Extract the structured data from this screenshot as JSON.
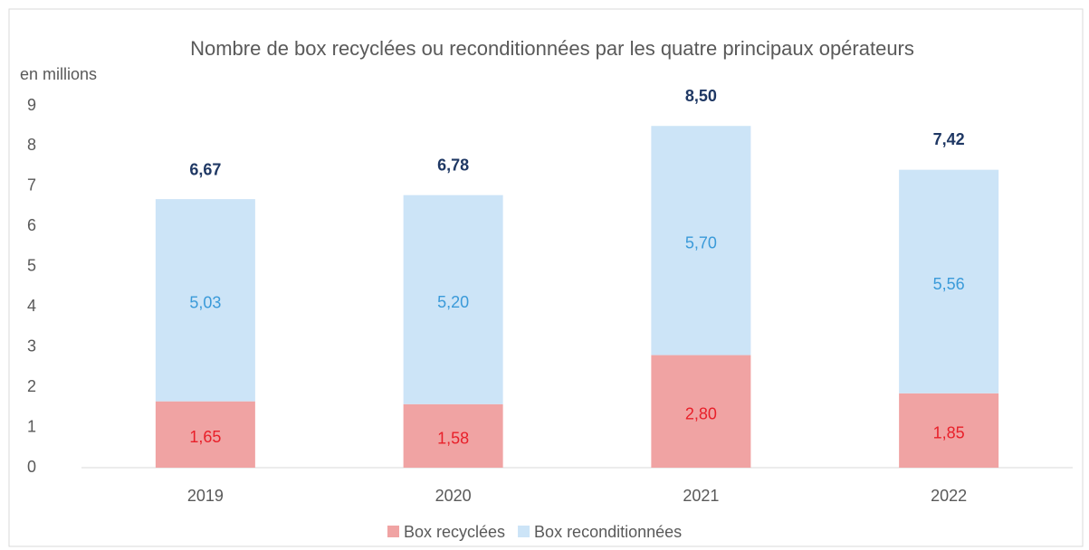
{
  "chart_data": {
    "type": "stacked_bar",
    "title": "Nombre de box recyclées ou reconditionnées par les quatre principaux opérateurs",
    "y_axis_label": "en millions",
    "categories": [
      "2019",
      "2020",
      "2021",
      "2022"
    ],
    "series": [
      {
        "name": "Box recyclées",
        "color": "#f0a3a3",
        "label_color": "#e8202a",
        "values": [
          1.65,
          1.58,
          2.8,
          1.85
        ],
        "value_labels": [
          "1,65",
          "1,58",
          "2,80",
          "1,85"
        ]
      },
      {
        "name": "Box reconditionnées",
        "color": "#cce4f7",
        "label_color": "#3a9ad9",
        "values": [
          5.03,
          5.2,
          5.7,
          5.56
        ],
        "value_labels": [
          "5,03",
          "5,20",
          "5,70",
          "5,56"
        ]
      }
    ],
    "totals": [
      6.67,
      6.78,
      8.5,
      7.42
    ],
    "total_labels": [
      "6,67",
      "6,78",
      "8,50",
      "7,42"
    ],
    "ylim": [
      0,
      9
    ],
    "yticks": [
      0,
      1,
      2,
      3,
      4,
      5,
      6,
      7,
      8,
      9
    ],
    "grid": false,
    "legend": "bottom"
  }
}
